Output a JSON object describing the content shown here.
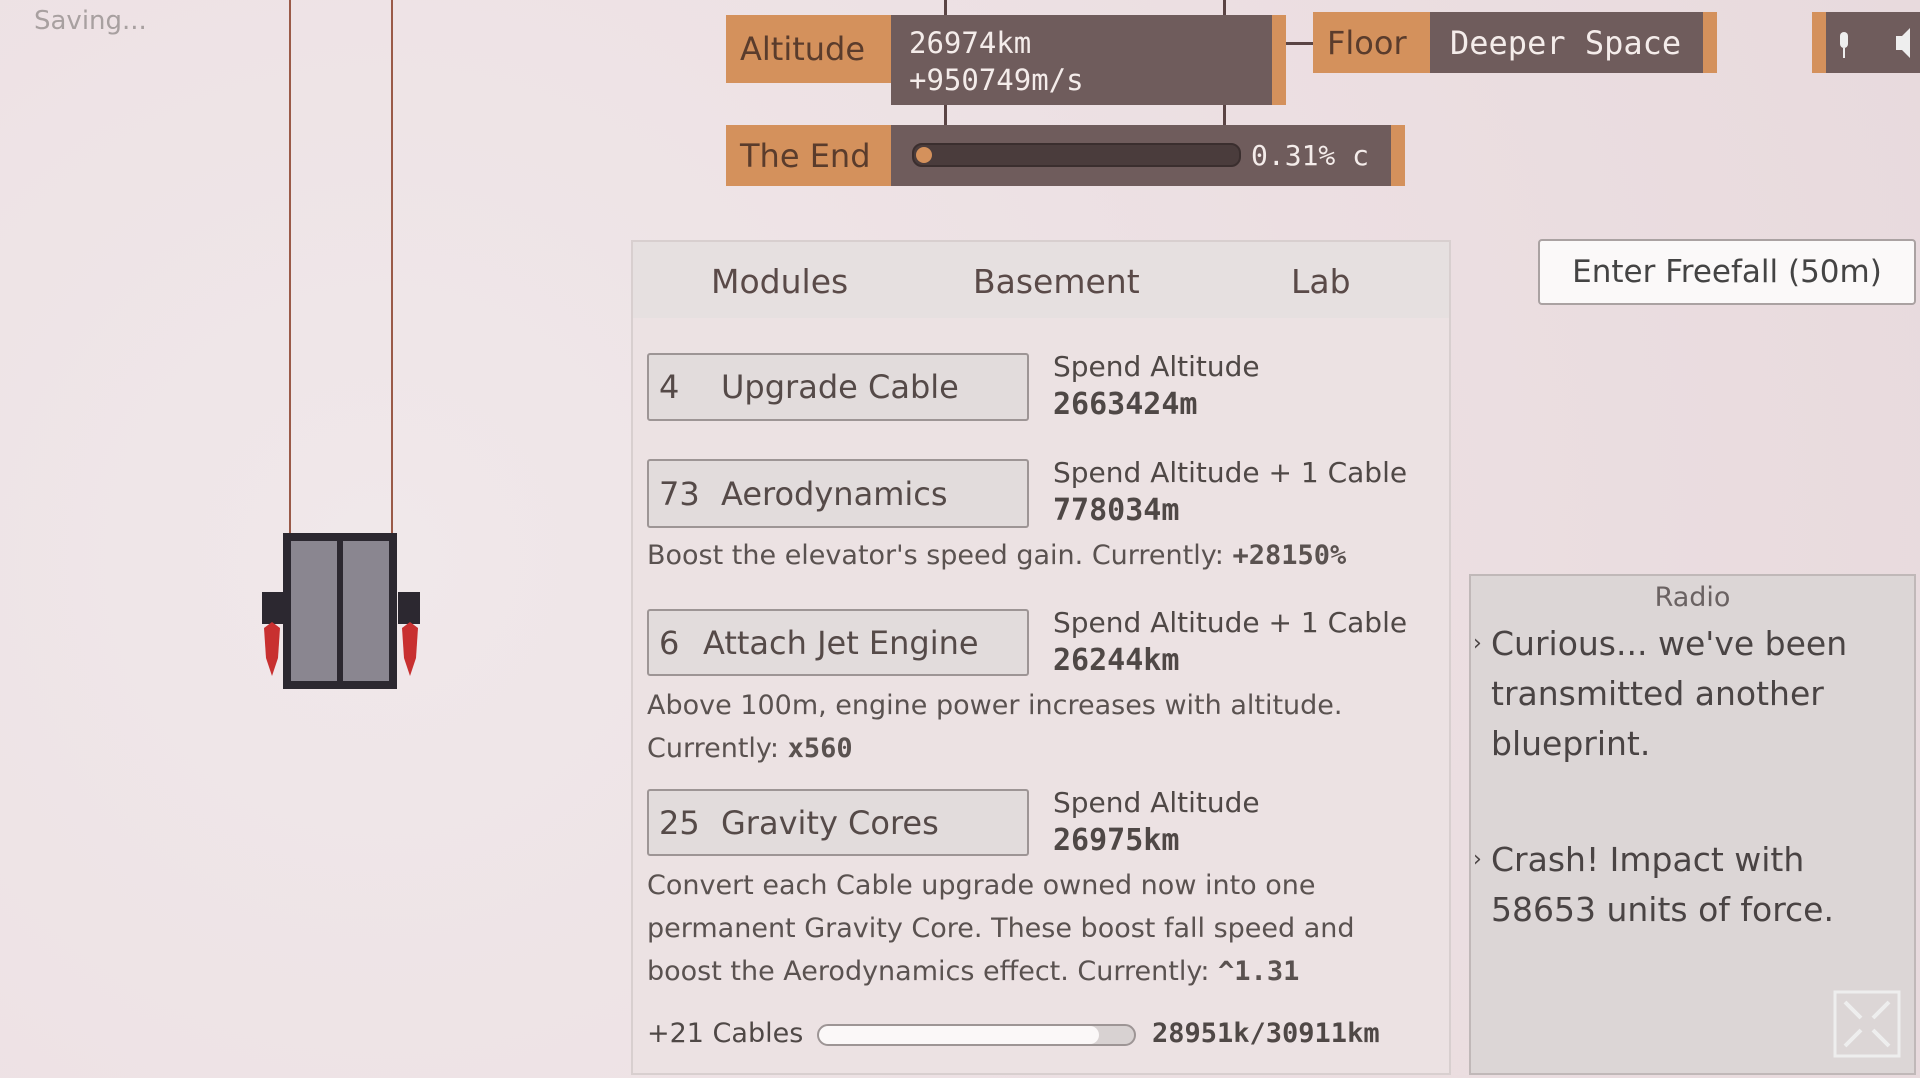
{
  "status": "Saving...",
  "altitude": {
    "label": "Altitude",
    "value": "26974km",
    "speed": "+950749m/s"
  },
  "floor": {
    "label": "Floor",
    "value": "Deeper Space"
  },
  "the_end": {
    "label": "The End",
    "value": "0.31% c"
  },
  "tabs": [
    "Modules",
    "Basement",
    "Lab"
  ],
  "upgrades": [
    {
      "count": 4,
      "name": "Upgrade Cable",
      "cost_label": "Spend Altitude",
      "cost": "2663424m"
    },
    {
      "count": 73,
      "name": "Aerodynamics",
      "cost_label": "Spend Altitude + 1 Cable",
      "cost": "778034m",
      "description": "Boost the elevator's speed gain. Currently:",
      "current": "+28150%"
    },
    {
      "count": 6,
      "name": "Attach Jet Engine",
      "cost_label": "Spend Altitude + 1 Cable",
      "cost": "26244km",
      "description": "Above 100m, engine power increases with altitude. Currently:",
      "current": "x560"
    },
    {
      "count": 25,
      "name": "Gravity Cores",
      "cost_label": "Spend Altitude",
      "cost": "26975km",
      "description": "Convert each Cable upgrade owned now into one permanent Gravity Core. These boost fall speed and boost the Aerodynamics effect. Currently:",
      "current": "^1.31"
    }
  ],
  "cables": {
    "label": "+21 Cables",
    "progress": "28951k/30911km"
  },
  "freefall_button": "Enter Freefall (50m)",
  "radio": {
    "title": "Radio",
    "messages": [
      "Curious... we've been transmitted another blueprint.",
      "Crash! Impact with 58653 units of force."
    ]
  }
}
